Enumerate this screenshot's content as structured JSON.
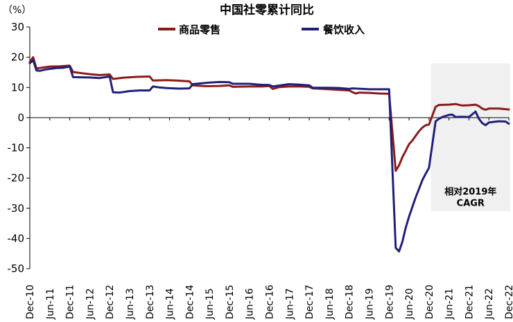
{
  "chart_data": {
    "type": "line",
    "title": "中国社零累计同比",
    "ylabel": "（%）",
    "ylim": [
      -50,
      30
    ],
    "yticks": [
      30,
      20,
      10,
      0,
      -10,
      -20,
      -30,
      -40,
      -50
    ],
    "grid": false,
    "legend_position": "top",
    "x_tick_labels": [
      "Dec-10",
      "Jun-11",
      "Dec-11",
      "Jun-12",
      "Dec-12",
      "Jun-13",
      "Dec-13",
      "Jun-14",
      "Dec-14",
      "Jun-15",
      "Dec-15",
      "Jun-16",
      "Dec-16",
      "Jun-17",
      "Dec-17",
      "Jun-18",
      "Dec-18",
      "Jun-19",
      "Dec-19",
      "Jun-20",
      "Dec-20",
      "Jun-21",
      "Dec-21",
      "Jun-22",
      "Dec-22"
    ],
    "annotation": {
      "lines": [
        "相对2019年",
        "CAGR"
      ],
      "x_range": [
        "2021-01",
        "2022-12"
      ],
      "y_range": [
        -31,
        18
      ],
      "color": "#f0f0f0"
    },
    "series": [
      {
        "name": "商品零售",
        "color": "#8b1a1a",
        "points": [
          [
            "2010-12",
            18.4
          ],
          [
            "2011-01",
            20.0
          ],
          [
            "2011-02",
            16.3
          ],
          [
            "2011-04",
            16.6
          ],
          [
            "2011-06",
            16.9
          ],
          [
            "2011-09",
            17.0
          ],
          [
            "2011-12",
            17.2
          ],
          [
            "2012-01",
            15.1
          ],
          [
            "2012-03",
            14.8
          ],
          [
            "2012-06",
            14.4
          ],
          [
            "2012-09",
            14.1
          ],
          [
            "2012-12",
            14.3
          ],
          [
            "2013-01",
            12.8
          ],
          [
            "2013-04",
            13.2
          ],
          [
            "2013-08",
            13.5
          ],
          [
            "2013-12",
            13.6
          ],
          [
            "2014-01",
            12.3
          ],
          [
            "2014-05",
            12.4
          ],
          [
            "2014-08",
            12.3
          ],
          [
            "2014-12",
            12.0
          ],
          [
            "2015-01",
            10.7
          ],
          [
            "2015-05",
            10.4
          ],
          [
            "2015-09",
            10.5
          ],
          [
            "2015-12",
            10.7
          ],
          [
            "2016-01",
            10.2
          ],
          [
            "2016-06",
            10.3
          ],
          [
            "2016-10",
            10.3
          ],
          [
            "2016-12",
            10.5
          ],
          [
            "2017-01",
            9.5
          ],
          [
            "2017-03",
            10.1
          ],
          [
            "2017-06",
            10.3
          ],
          [
            "2017-09",
            10.3
          ],
          [
            "2017-12",
            10.2
          ],
          [
            "2018-01",
            9.7
          ],
          [
            "2018-06",
            9.4
          ],
          [
            "2018-09",
            9.2
          ],
          [
            "2018-12",
            9.0
          ],
          [
            "2019-01",
            8.4
          ],
          [
            "2019-02",
            8.0
          ],
          [
            "2019-03",
            8.3
          ],
          [
            "2019-06",
            8.2
          ],
          [
            "2019-09",
            8.0
          ],
          [
            "2019-12",
            7.9
          ],
          [
            "2020-02",
            -17.6
          ],
          [
            "2020-03",
            -15.8
          ],
          [
            "2020-04",
            -13.1
          ],
          [
            "2020-05",
            -11.0
          ],
          [
            "2020-06",
            -8.8
          ],
          [
            "2020-07",
            -7.6
          ],
          [
            "2020-08",
            -6.0
          ],
          [
            "2020-09",
            -4.5
          ],
          [
            "2020-10",
            -3.3
          ],
          [
            "2020-11",
            -2.5
          ],
          [
            "2020-12",
            -2.3
          ],
          [
            "2021-02",
            3.6
          ],
          [
            "2021-03",
            4.2
          ],
          [
            "2021-06",
            4.3
          ],
          [
            "2021-08",
            4.5
          ],
          [
            "2021-10",
            4.0
          ],
          [
            "2021-12",
            4.1
          ],
          [
            "2022-02",
            4.3
          ],
          [
            "2022-03",
            3.8
          ],
          [
            "2022-04",
            3.0
          ],
          [
            "2022-05",
            2.6
          ],
          [
            "2022-06",
            3.0
          ],
          [
            "2022-09",
            3.0
          ],
          [
            "2022-12",
            2.7
          ]
        ]
      },
      {
        "name": "餐饮收入",
        "color": "#1f1f7a",
        "points": [
          [
            "2010-12",
            18.0
          ],
          [
            "2011-01",
            19.0
          ],
          [
            "2011-02",
            15.6
          ],
          [
            "2011-03",
            15.5
          ],
          [
            "2011-05",
            16.0
          ],
          [
            "2011-08",
            16.4
          ],
          [
            "2011-10",
            16.5
          ],
          [
            "2011-12",
            16.9
          ],
          [
            "2012-01",
            13.4
          ],
          [
            "2012-06",
            13.3
          ],
          [
            "2012-09",
            13.1
          ],
          [
            "2012-12",
            13.6
          ],
          [
            "2013-01",
            8.4
          ],
          [
            "2013-03",
            8.3
          ],
          [
            "2013-06",
            8.8
          ],
          [
            "2013-09",
            9.0
          ],
          [
            "2013-12",
            9.0
          ],
          [
            "2014-01",
            10.3
          ],
          [
            "2014-03",
            10.0
          ],
          [
            "2014-05",
            9.8
          ],
          [
            "2014-09",
            9.6
          ],
          [
            "2014-12",
            9.7
          ],
          [
            "2015-01",
            11.1
          ],
          [
            "2015-06",
            11.6
          ],
          [
            "2015-09",
            11.8
          ],
          [
            "2015-12",
            11.7
          ],
          [
            "2016-01",
            11.2
          ],
          [
            "2016-06",
            11.2
          ],
          [
            "2016-09",
            10.9
          ],
          [
            "2016-12",
            10.8
          ],
          [
            "2017-01",
            10.3
          ],
          [
            "2017-06",
            11.1
          ],
          [
            "2017-09",
            10.9
          ],
          [
            "2017-12",
            10.7
          ],
          [
            "2018-01",
            9.9
          ],
          [
            "2018-06",
            9.9
          ],
          [
            "2018-09",
            9.8
          ],
          [
            "2018-12",
            9.5
          ],
          [
            "2019-01",
            9.7
          ],
          [
            "2019-06",
            9.4
          ],
          [
            "2019-09",
            9.4
          ],
          [
            "2019-12",
            9.4
          ],
          [
            "2020-02",
            -43.1
          ],
          [
            "2020-03",
            -44.3
          ],
          [
            "2020-04",
            -41.1
          ],
          [
            "2020-05",
            -36.5
          ],
          [
            "2020-06",
            -32.8
          ],
          [
            "2020-07",
            -29.6
          ],
          [
            "2020-08",
            -26.4
          ],
          [
            "2020-09",
            -23.6
          ],
          [
            "2020-10",
            -20.7
          ],
          [
            "2020-11",
            -18.6
          ],
          [
            "2020-12",
            -16.6
          ],
          [
            "2021-02",
            -1.2
          ],
          [
            "2021-03",
            -0.4
          ],
          [
            "2021-04",
            0.2
          ],
          [
            "2021-06",
            0.9
          ],
          [
            "2021-07",
            1.0
          ],
          [
            "2021-08",
            0.2
          ],
          [
            "2021-10",
            0.3
          ],
          [
            "2021-12",
            0.2
          ],
          [
            "2022-02",
            2.0
          ],
          [
            "2022-03",
            -0.4
          ],
          [
            "2022-04",
            -1.8
          ],
          [
            "2022-05",
            -2.5
          ],
          [
            "2022-06",
            -1.6
          ],
          [
            "2022-09",
            -1.2
          ],
          [
            "2022-11",
            -1.3
          ],
          [
            "2022-12",
            -2.0
          ]
        ]
      }
    ]
  }
}
